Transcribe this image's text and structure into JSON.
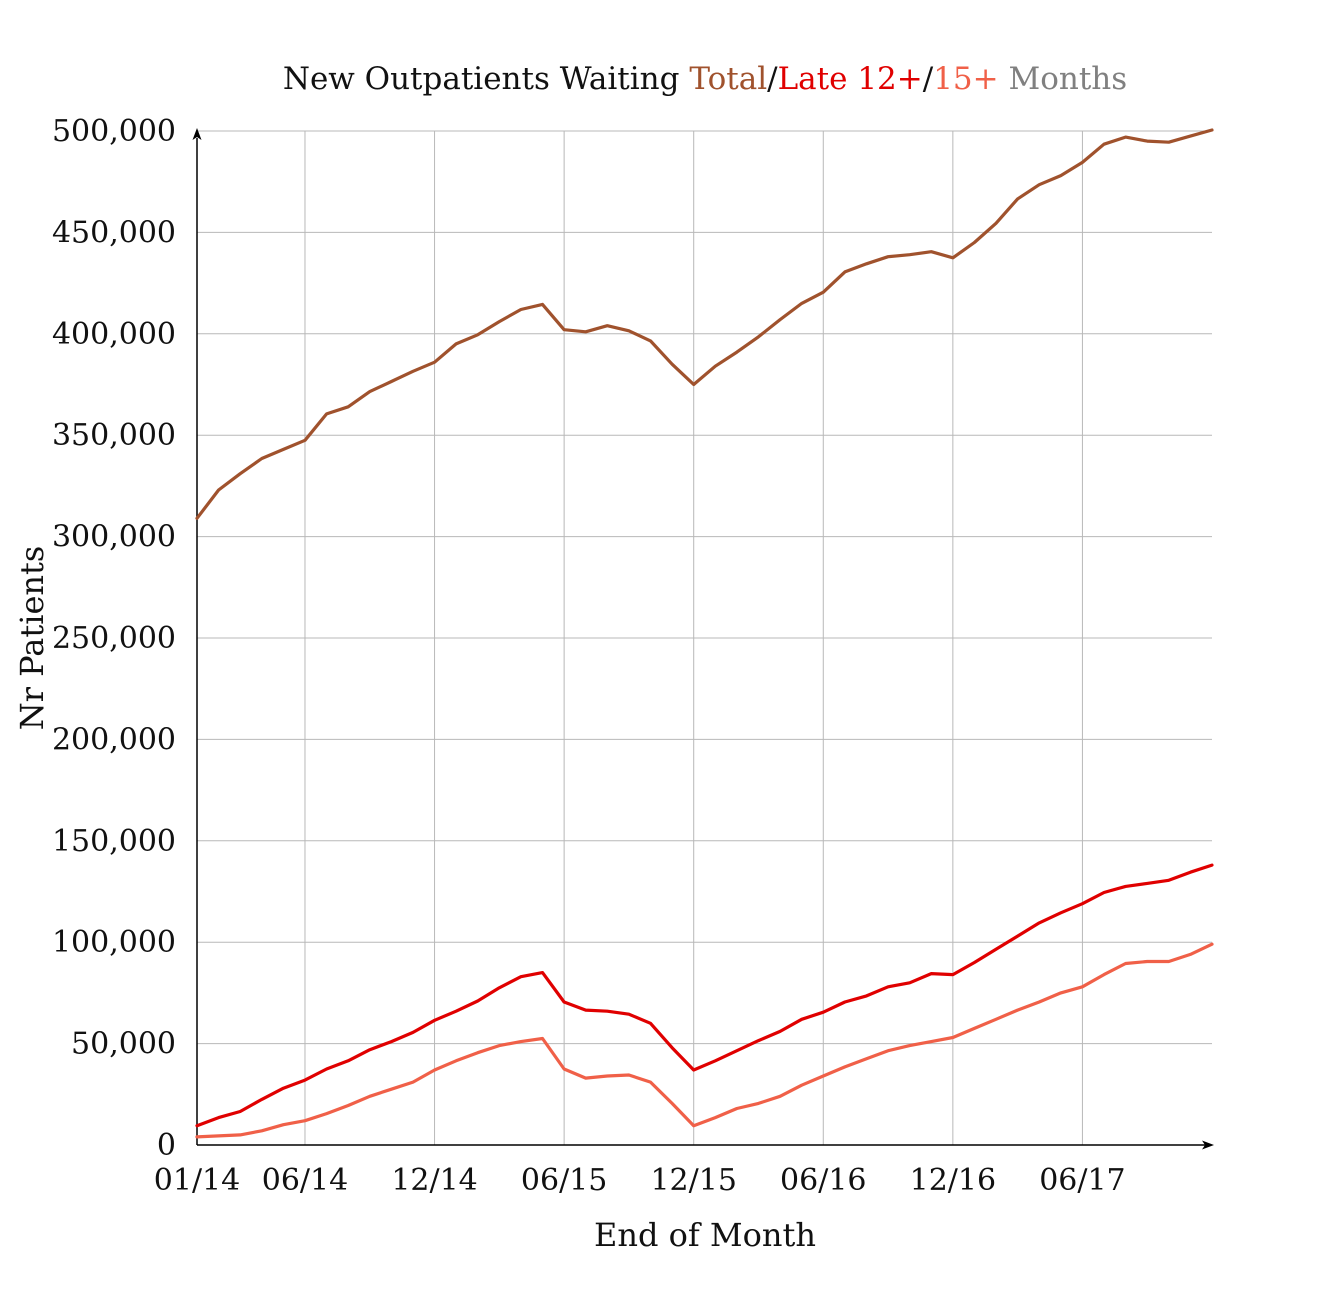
{
  "chart_data": {
    "type": "line",
    "title": {
      "parts": [
        {
          "text": "New Outpatients Waiting ",
          "color": "#111111"
        },
        {
          "text": "Total",
          "color": "#a0522d"
        },
        {
          "text": "/",
          "color": "#111111"
        },
        {
          "text": "Late 12+",
          "color": "#e00000"
        },
        {
          "text": "/",
          "color": "#111111"
        },
        {
          "text": "15+",
          "color": "#f06048"
        },
        {
          "text": " Months",
          "color": "#808080"
        }
      ]
    },
    "xlabel": "End of Month",
    "ylabel": "Nr Patients",
    "x_tick_labels": [
      "01/14",
      "06/14",
      "12/14",
      "06/15",
      "12/15",
      "06/16",
      "12/16",
      "06/17"
    ],
    "y_tick_labels": [
      "0",
      "50,000",
      "100,000",
      "150,000",
      "200,000",
      "250,000",
      "300,000",
      "350,000",
      "400,000",
      "450,000",
      "500,000"
    ],
    "ylim": [
      0,
      500000
    ],
    "x": [
      "01/14",
      "02/14",
      "03/14",
      "04/14",
      "05/14",
      "06/14",
      "07/14",
      "08/14",
      "09/14",
      "10/14",
      "11/14",
      "12/14",
      "01/15",
      "02/15",
      "03/15",
      "04/15",
      "05/15",
      "06/15",
      "07/15",
      "08/15",
      "09/15",
      "10/15",
      "11/15",
      "12/15",
      "01/16",
      "02/16",
      "03/16",
      "04/16",
      "05/16",
      "06/16",
      "07/16",
      "08/16",
      "09/16",
      "10/16",
      "11/16",
      "12/16",
      "01/17",
      "02/17",
      "03/17",
      "04/17",
      "05/17",
      "06/17",
      "07/17",
      "08/17",
      "09/17",
      "10/17",
      "11/17",
      "12/17"
    ],
    "grid": true,
    "series": [
      {
        "color": "#a0522d",
        "values": [
          309000,
          323000,
          331000,
          338500,
          343000,
          347500,
          360500,
          364000,
          371500,
          376500,
          381500,
          386000,
          395000,
          399500,
          406000,
          412000,
          414500,
          402000,
          401000,
          404000,
          401500,
          396500,
          385000,
          375000,
          384000,
          391000,
          398500,
          407000,
          415000,
          420500,
          430500,
          434500,
          438000,
          439000,
          440500,
          437500,
          445000,
          454500,
          466500,
          473500,
          478000,
          484500,
          493500,
          497000,
          495000,
          494500,
          497500,
          500500
        ]
      },
      {
        "color": "#e00000",
        "values": [
          9500,
          13500,
          16500,
          22500,
          28000,
          32000,
          37500,
          41500,
          47000,
          51000,
          55500,
          61500,
          66000,
          71000,
          77500,
          83000,
          85000,
          70500,
          66500,
          66000,
          64500,
          60000,
          48000,
          37000,
          41500,
          46500,
          51500,
          56000,
          62000,
          65500,
          70500,
          73500,
          78000,
          80000,
          84500,
          84000,
          90000,
          96500,
          103000,
          109500,
          114500,
          119000,
          124500,
          127500,
          129000,
          130500,
          134500,
          138000
        ]
      },
      {
        "color": "#f06048",
        "values": [
          4000,
          4500,
          5000,
          7000,
          10000,
          12000,
          15500,
          19500,
          24000,
          27500,
          31000,
          37000,
          41500,
          45500,
          49000,
          51000,
          52500,
          37500,
          33000,
          34000,
          34500,
          31000,
          20500,
          9500,
          13500,
          18000,
          20500,
          24000,
          29500,
          34000,
          38500,
          42500,
          46500,
          49000,
          51000,
          53000,
          57500,
          62000,
          66500,
          70500,
          75000,
          78000,
          84000,
          89500,
          90500,
          90500,
          94000,
          99000
        ]
      }
    ]
  }
}
